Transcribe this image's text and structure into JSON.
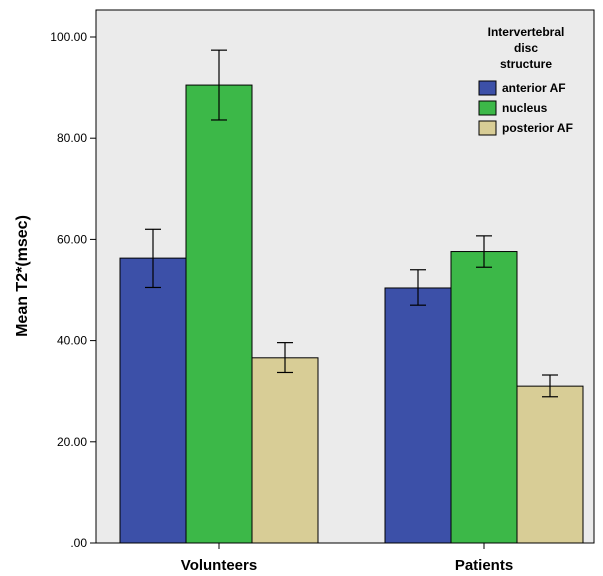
{
  "chart_data": {
    "type": "bar",
    "categories": [
      "Volunteers",
      "Patients"
    ],
    "series": [
      {
        "name": "anterior AF",
        "color": "#3c50a8",
        "values": [
          56.3,
          50.4
        ],
        "error_low": [
          50.5,
          47.0
        ],
        "error_high": [
          62.0,
          54.0
        ]
      },
      {
        "name": "nucleus",
        "color": "#3cb848",
        "values": [
          90.5,
          57.6
        ],
        "error_low": [
          83.6,
          54.5
        ],
        "error_high": [
          97.4,
          60.7
        ]
      },
      {
        "name": "posterior AF",
        "color": "#d8cd96",
        "values": [
          36.6,
          31.0
        ],
        "error_low": [
          33.7,
          28.9
        ],
        "error_high": [
          39.6,
          33.2
        ]
      }
    ],
    "ylabel": "Mean T2*(msec)",
    "xlabel": "",
    "ylim": [
      0,
      105
    ],
    "yticks": [
      0,
      20,
      40,
      60,
      80,
      100
    ],
    "ytick_labels": [
      ".00",
      "20.00",
      "40.00",
      "60.00",
      "80.00",
      "100.00"
    ],
    "legend": {
      "title_lines": [
        "Intervertebral",
        "disc",
        "structure"
      ],
      "position": "top-right"
    },
    "grid": false,
    "plot_background": "#ebebeb"
  }
}
